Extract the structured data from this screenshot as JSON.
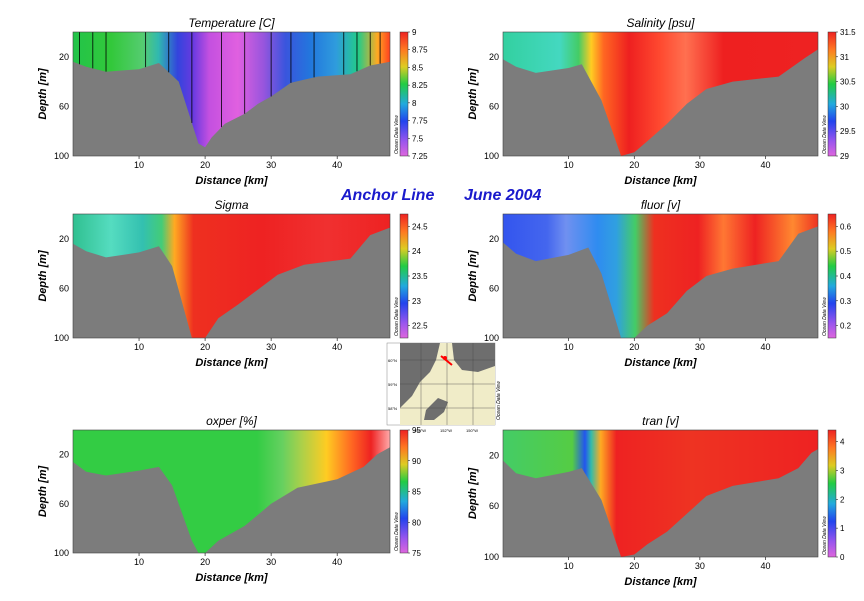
{
  "main_title": {
    "line": "Anchor Line",
    "date": "June 2004",
    "color": "#1a1acc"
  },
  "watermark": "Ocean Data View",
  "map": {
    "lat_labels": [
      "60°N",
      "59°N",
      "58°N"
    ],
    "lon_labels": [
      "154°W",
      "152°W",
      "150°W"
    ],
    "track_color": "#ff0000"
  },
  "chart_data": [
    {
      "id": "temperature",
      "type": "heatmap",
      "title": "Temperature [C]",
      "xlabel": "Distance [km]",
      "ylabel": "Depth [m]",
      "xlim": [
        0,
        48
      ],
      "ylim": [
        100,
        0
      ],
      "x_ticks": [
        10,
        20,
        30,
        40
      ],
      "y_ticks": [
        20,
        60,
        100
      ],
      "colorbar": {
        "min": 7.25,
        "max": 9,
        "ticks": [
          "7.25",
          "7.5",
          "7.75",
          "8",
          "8.25",
          "8.5",
          "8.75",
          "9"
        ]
      },
      "station_lines": true,
      "bottom_profile": [
        [
          0,
          24
        ],
        [
          2,
          28
        ],
        [
          5,
          32
        ],
        [
          10,
          30
        ],
        [
          13,
          25
        ],
        [
          16,
          40
        ],
        [
          19,
          90
        ],
        [
          20,
          93
        ],
        [
          21,
          85
        ],
        [
          23,
          74
        ],
        [
          26,
          66
        ],
        [
          28,
          58
        ],
        [
          30,
          52
        ],
        [
          33,
          41
        ],
        [
          37,
          36
        ],
        [
          42,
          34
        ],
        [
          45,
          27
        ],
        [
          48,
          24
        ]
      ],
      "gradient": "linear-gradient(90deg,#22c44a 0%,#32c83a 12%,#55cc70 22%,#30b8b0 27%,#3344dd 33%,#6a3ae0 38%,#c450e0 43%,#e060e0 52%,#9955dd 60%,#3a55dd 67%,#2277dd 75%,#2f9cdd 83%,#22cc88 90%,#ffaa22 96%,#ff4020 100%)"
    },
    {
      "id": "salinity",
      "type": "heatmap",
      "title": "Salinity [psu]",
      "xlabel": "Distance [km]",
      "ylabel": "Depth [m]",
      "xlim": [
        0,
        48
      ],
      "ylim": [
        100,
        0
      ],
      "x_ticks": [
        10,
        20,
        30,
        40
      ],
      "y_ticks": [
        20,
        60,
        100
      ],
      "colorbar": {
        "min": 29,
        "max": 31.5,
        "ticks": [
          "29",
          "29.5",
          "30",
          "30.5",
          "31",
          "31.5"
        ]
      },
      "station_lines": false,
      "bottom_profile": [
        [
          0,
          22
        ],
        [
          2,
          28
        ],
        [
          5,
          33
        ],
        [
          10,
          29
        ],
        [
          12,
          26
        ],
        [
          15,
          55
        ],
        [
          18,
          100
        ],
        [
          20,
          97
        ],
        [
          22,
          88
        ],
        [
          25,
          74
        ],
        [
          28,
          58
        ],
        [
          31,
          46
        ],
        [
          35,
          40
        ],
        [
          42,
          36
        ],
        [
          46,
          21
        ],
        [
          48,
          14
        ]
      ],
      "gradient": "linear-gradient(90deg,#33d0a0 0%,#44d8c0 18%,#44cc66 24%,#ffcc22 28%,#ff6622 32%,#ee2020 40%,#ff4a30 50%,#ff7050 58%,#ee2020 70%,#ee2222 100%)"
    },
    {
      "id": "sigma",
      "type": "heatmap",
      "title": "Sigma",
      "xlabel": "Distance [km]",
      "ylabel": "Depth [m]",
      "xlim": [
        0,
        48
      ],
      "ylim": [
        100,
        0
      ],
      "x_ticks": [
        10,
        20,
        30,
        40
      ],
      "y_ticks": [
        20,
        60,
        100
      ],
      "colorbar": {
        "min": 22.25,
        "max": 24.75,
        "ticks": [
          "22.5",
          "23",
          "23.5",
          "24",
          "24.5"
        ]
      },
      "station_lines": false,
      "bottom_profile": [
        [
          0,
          24
        ],
        [
          2,
          30
        ],
        [
          5,
          35
        ],
        [
          10,
          31
        ],
        [
          13,
          26
        ],
        [
          15,
          42
        ],
        [
          18,
          100
        ],
        [
          20,
          100
        ],
        [
          22,
          84
        ],
        [
          25,
          73
        ],
        [
          28,
          61
        ],
        [
          31,
          49
        ],
        [
          35,
          41
        ],
        [
          42,
          36
        ],
        [
          45,
          17
        ],
        [
          48,
          11
        ]
      ],
      "gradient": "linear-gradient(90deg,#30c090 0%,#55dcc0 12%,#33c0b0 22%,#44cc77 28%,#ffaa22 32%,#ee3020 38%,#ee2222 60%,#f03030 80%,#ee2222 100%)"
    },
    {
      "id": "fluor",
      "type": "heatmap",
      "title": "fluor [v]",
      "xlabel": "Distance [km]",
      "ylabel": "Depth [m]",
      "xlim": [
        0,
        48
      ],
      "ylim": [
        100,
        0
      ],
      "x_ticks": [
        10,
        20,
        30,
        40
      ],
      "y_ticks": [
        20,
        60,
        100
      ],
      "colorbar": {
        "min": 0.15,
        "max": 0.65,
        "ticks": [
          "0.2",
          "0.3",
          "0.4",
          "0.5",
          "0.6"
        ]
      },
      "station_lines": false,
      "bottom_profile": [
        [
          0,
          23
        ],
        [
          2,
          32
        ],
        [
          5,
          38
        ],
        [
          10,
          33
        ],
        [
          13,
          27
        ],
        [
          15,
          48
        ],
        [
          18,
          100
        ],
        [
          20,
          100
        ],
        [
          22,
          90
        ],
        [
          25,
          80
        ],
        [
          28,
          62
        ],
        [
          31,
          50
        ],
        [
          35,
          44
        ],
        [
          42,
          38
        ],
        [
          45,
          16
        ],
        [
          48,
          10
        ]
      ],
      "gradient": "linear-gradient(90deg,#3355ee 0%,#4466ee 14%,#7090f0 20%,#2f8cf0 30%,#30a0e0 36%,#44cc66 42%,#ee3020 48%,#ee2222 62%,#ff7733 70%,#ee2222 80%,#ff8830 92%,#ee3322 100%)"
    },
    {
      "id": "oxper",
      "type": "heatmap",
      "title": "oxper [%]",
      "xlabel": "Distance [km]",
      "ylabel": "Depth [m]",
      "xlim": [
        0,
        48
      ],
      "ylim": [
        100,
        0
      ],
      "x_ticks": [
        10,
        20,
        30,
        40
      ],
      "y_ticks": [
        20,
        60,
        100
      ],
      "colorbar": {
        "min": 75,
        "max": 95,
        "ticks": [
          "75",
          "80",
          "85",
          "90",
          "95"
        ]
      },
      "station_lines": false,
      "bottom_profile": [
        [
          0,
          26
        ],
        [
          2,
          34
        ],
        [
          5,
          37
        ],
        [
          10,
          33
        ],
        [
          13,
          30
        ],
        [
          15,
          45
        ],
        [
          18,
          90
        ],
        [
          19,
          100
        ],
        [
          20,
          100
        ],
        [
          22,
          90
        ],
        [
          26,
          78
        ],
        [
          30,
          60
        ],
        [
          34,
          47
        ],
        [
          40,
          40
        ],
        [
          44,
          30
        ],
        [
          46,
          20
        ],
        [
          48,
          14
        ]
      ],
      "gradient": "linear-gradient(90deg,#33cc44 0%,#33cc44 58%,#66d060 66%,#aad04a 72%,#ffcc22 80%,#ff6622 88%,#ee2222 94%,#ffaaaa 100%)"
    },
    {
      "id": "tran",
      "type": "heatmap",
      "title": "tran [v]",
      "xlabel": "Distance [km]",
      "ylabel": "Depth [m]",
      "xlim": [
        0,
        48
      ],
      "ylim": [
        100,
        0
      ],
      "x_ticks": [
        10,
        20,
        30,
        40
      ],
      "y_ticks": [
        20,
        60,
        100
      ],
      "colorbar": {
        "min": 0,
        "max": 4.4,
        "ticks": [
          "0",
          "1",
          "2",
          "3",
          "4"
        ]
      },
      "station_lines": false,
      "bottom_profile": [
        [
          0,
          24
        ],
        [
          2,
          34
        ],
        [
          5,
          38
        ],
        [
          10,
          33
        ],
        [
          12,
          30
        ],
        [
          15,
          55
        ],
        [
          18,
          100
        ],
        [
          20,
          98
        ],
        [
          22,
          90
        ],
        [
          25,
          80
        ],
        [
          28,
          66
        ],
        [
          31,
          52
        ],
        [
          35,
          44
        ],
        [
          42,
          38
        ],
        [
          45,
          30
        ],
        [
          47,
          18
        ],
        [
          48,
          15
        ]
      ],
      "gradient": "linear-gradient(90deg,#44cc66 0%,#55cc44 22%,#2255ee 26%,#33bbaa 28%,#ffaa22 31%,#ee2222 36%,#ee3322 60%,#ee2222 100%)"
    }
  ]
}
